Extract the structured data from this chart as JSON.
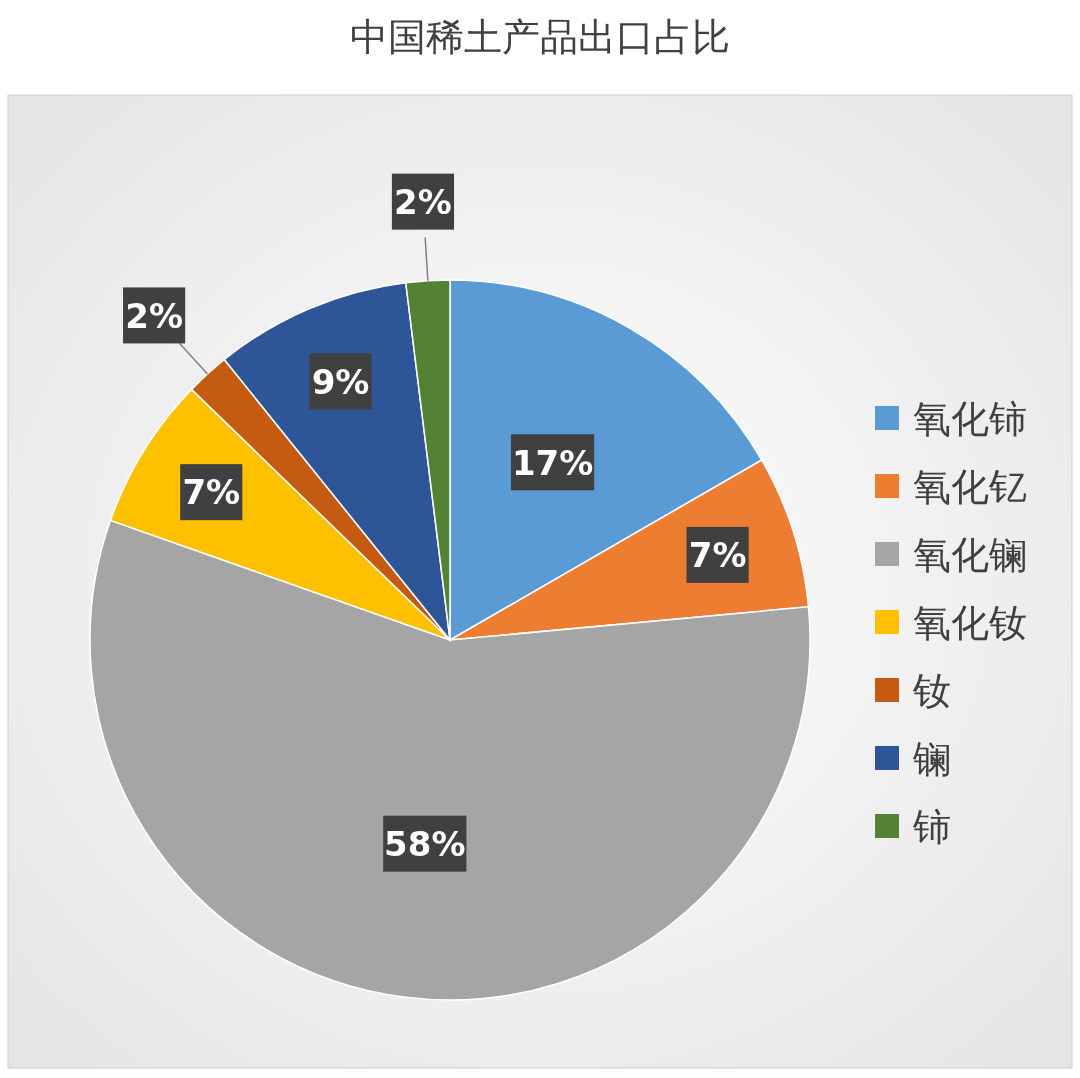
{
  "chart_data": {
    "type": "pie",
    "title": "中国稀土产品出口占比",
    "categories": [
      "氧化铈",
      "氧化钇",
      "氧化镧",
      "氧化钕",
      "钕",
      "镧",
      "铈"
    ],
    "values": [
      17,
      7,
      58,
      7,
      2,
      9,
      2
    ],
    "colors": [
      "#5b9bd5",
      "#ed7d31",
      "#a5a5a5",
      "#ffc000",
      "#c55a11",
      "#2e5597",
      "#548235"
    ],
    "value_labels": [
      "17%",
      "7%",
      "58%",
      "7%",
      "2%",
      "9%",
      "2%"
    ],
    "legend": "right"
  }
}
